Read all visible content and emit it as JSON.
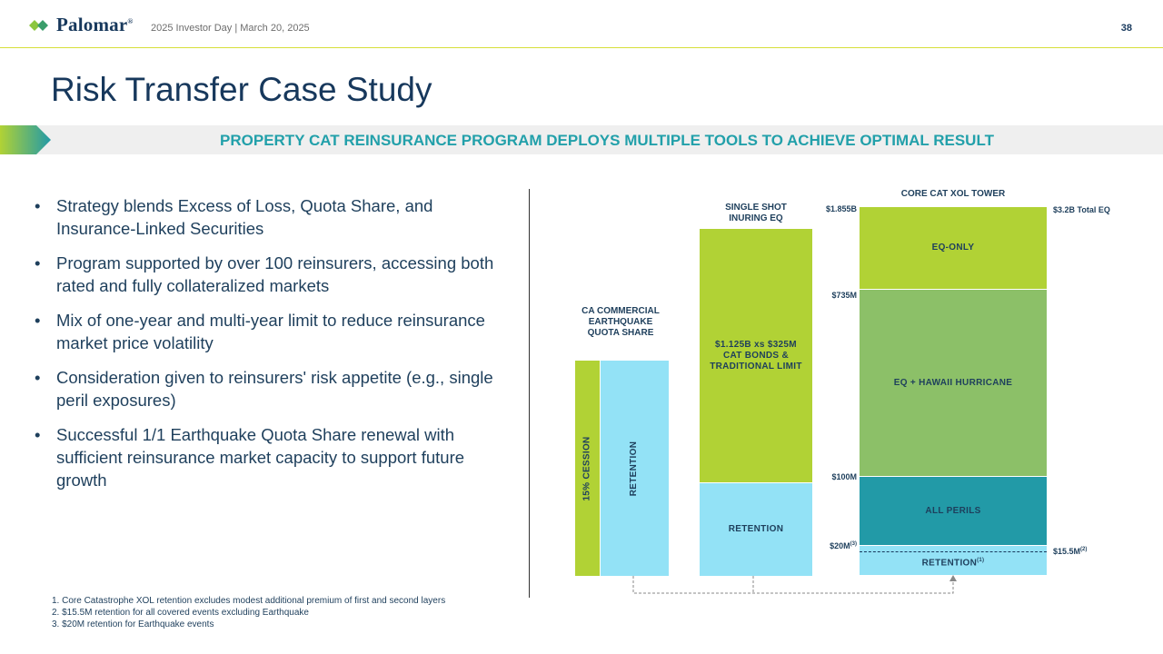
{
  "header": {
    "brand": "Palomar",
    "brand_mark": "®",
    "event": "2025 Investor Day | March 20, 2025",
    "page_number": "38"
  },
  "title": "Risk Transfer Case Study",
  "banner": "PROPERTY CAT REINSURANCE PROGRAM DEPLOYS MULTIPLE TOOLS TO ACHIEVE OPTIMAL RESULT",
  "bullets": [
    "Strategy blends Excess of Loss, Quota Share, and Insurance-Linked Securities",
    "Program supported by over 100 reinsurers, accessing both rated and fully collateralized markets",
    "Mix of one-year and multi-year limit to reduce reinsurance market price volatility",
    "Consideration given to reinsurers' risk appetite (e.g., single peril exposures)",
    "Successful 1/1 Earthquake Quota Share renewal with sufficient reinsurance market capacity to support future growth"
  ],
  "footnotes": [
    "1. Core Catastrophe XOL retention excludes modest additional premium of first and second layers",
    "2. $15.5M retention for all covered events excluding Earthquake",
    "3. $20M  retention for Earthquake events"
  ],
  "diagram": {
    "quota_share": {
      "title_lines": [
        "CA COMMERCIAL",
        "EARTHQUAKE",
        "QUOTA SHARE"
      ],
      "cession_label": "15% CESSION",
      "retention_label": "RETENTION"
    },
    "single_shot": {
      "title_lines": [
        "SINGLE SHOT",
        "INURING EQ"
      ],
      "limit_lines": [
        "$1.125B xs $325M",
        "CAT BONDS &",
        "TRADITIONAL LIMIT"
      ],
      "retention_label": "RETENTION"
    },
    "core_tower": {
      "title": "CORE CAT XOL TOWER",
      "layers": {
        "eq_only": "EQ-ONLY",
        "eq_hawaii": "EQ + HAWAII HURRICANE",
        "all_perils": "ALL PERILS",
        "retention": "RETENTION",
        "retention_note": "(1)"
      },
      "ticks": {
        "top": "$1.855B",
        "t735": "$735M",
        "t100": "$100M",
        "t20": "$20M",
        "t20_note": "(3)"
      },
      "right_labels": {
        "total": "$3.2B Total EQ",
        "r155": "$15.5M",
        "r155_note": "(2)"
      }
    },
    "colors": {
      "lime": "#b1d235",
      "light_blue": "#93e2f6",
      "green": "#8cc068",
      "teal": "#229aa7",
      "navy": "#17385c"
    }
  }
}
